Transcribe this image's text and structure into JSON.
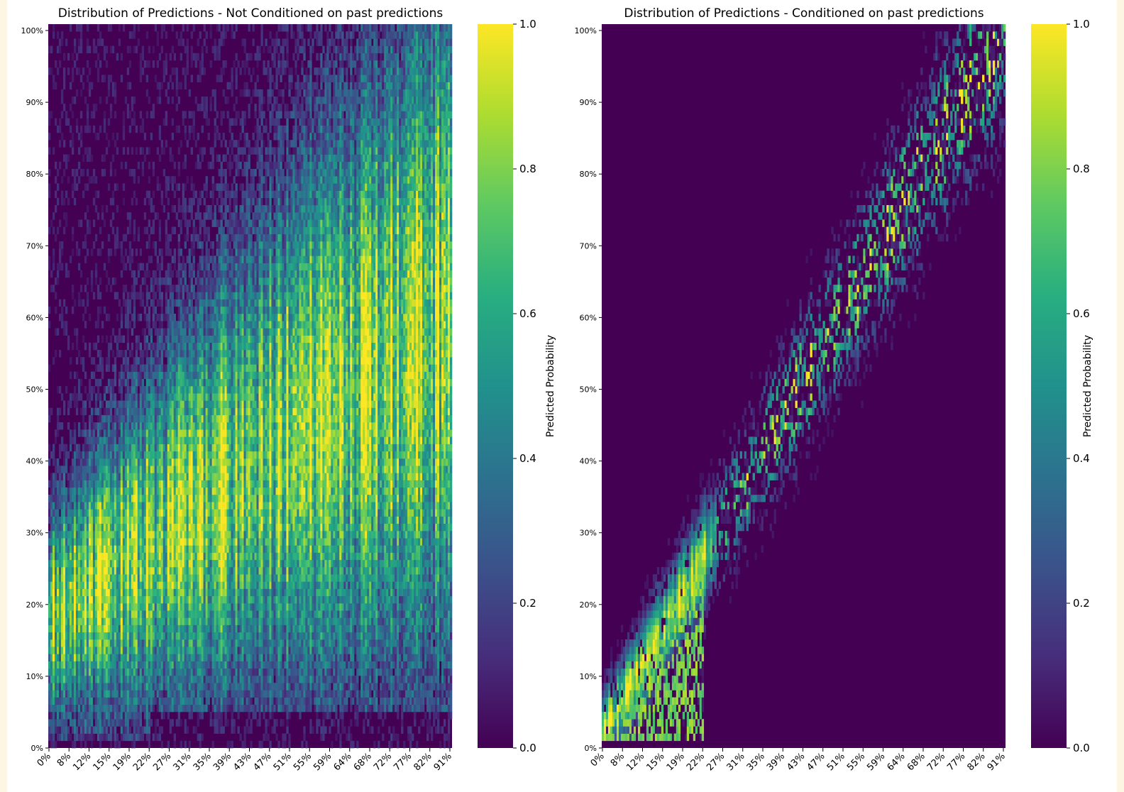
{
  "chart_data": [
    {
      "type": "heatmap",
      "title": "Distribution of Predictions - Not Conditioned on past predictions",
      "xlabel": "",
      "ylabel": "",
      "x_tick_labels": [
        "0%",
        "8%",
        "12%",
        "15%",
        "19%",
        "22%",
        "27%",
        "31%",
        "35%",
        "39%",
        "43%",
        "47%",
        "51%",
        "55%",
        "59%",
        "64%",
        "68%",
        "72%",
        "77%",
        "82%",
        "91%"
      ],
      "y_tick_labels": [
        "0%",
        "10%",
        "20%",
        "30%",
        "40%",
        "50%",
        "60%",
        "70%",
        "80%",
        "90%",
        "100%"
      ],
      "colormap": "viridis",
      "colorbar": {
        "label": "Predicted Probability",
        "range": [
          0.0,
          1.0
        ],
        "ticks": [
          "0.0",
          "0.2",
          "0.4",
          "0.6",
          "0.8",
          "1.0"
        ]
      },
      "pattern": "broad band of high probability; high values for predictions above roughly 10% across most of the x range, concentrated around 15-40% at low x and spreading upward at higher x"
    },
    {
      "type": "heatmap",
      "title": "Distribution of Predictions - Conditioned on past predictions",
      "xlabel": "",
      "ylabel": "",
      "x_tick_labels": [
        "0%",
        "8%",
        "12%",
        "15%",
        "19%",
        "22%",
        "27%",
        "31%",
        "35%",
        "39%",
        "43%",
        "47%",
        "51%",
        "55%",
        "59%",
        "64%",
        "68%",
        "72%",
        "77%",
        "82%",
        "91%"
      ],
      "y_tick_labels": [
        "0%",
        "10%",
        "20%",
        "30%",
        "40%",
        "50%",
        "60%",
        "70%",
        "80%",
        "90%",
        "100%"
      ],
      "colormap": "viridis",
      "colorbar": {
        "label": "Predicted Probability",
        "range": [
          0.0,
          1.0
        ],
        "ticks": [
          "0.0",
          "0.2",
          "0.4",
          "0.6",
          "0.8",
          "1.0"
        ]
      },
      "pattern": "narrow diagonal band of high probability rising from low predictions at low x to high predictions at high x; mostly 0 elsewhere"
    }
  ],
  "colors": {
    "viridis_low": "#440154",
    "viridis_mid": "#21918c",
    "viridis_high": "#fde725"
  }
}
